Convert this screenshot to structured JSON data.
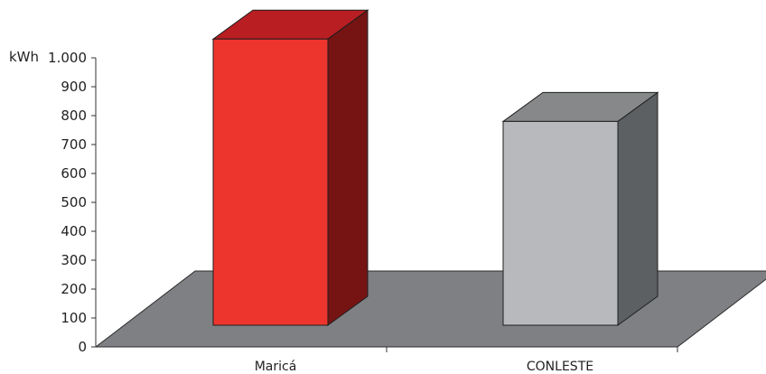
{
  "chart_data": {
    "type": "bar",
    "style": "3d",
    "unit": "kWh",
    "categories": [
      "Maricá",
      "CONLESTE"
    ],
    "values": [
      990,
      705
    ],
    "ylim": [
      0,
      1000
    ],
    "yticks": [
      0,
      100,
      200,
      300,
      400,
      500,
      600,
      700,
      800,
      900,
      1000
    ],
    "ytick_labels": [
      "0",
      "100",
      "200",
      "300",
      "400",
      "500",
      "600",
      "700",
      "800",
      "900",
      "1.000"
    ],
    "grid": false,
    "legend": "none",
    "colors": {
      "bar_front": [
        "#ee352d",
        "#b8b9bc"
      ],
      "bar_top": [
        "#b81e22",
        "#87888a"
      ],
      "bar_side": [
        "#761414",
        "#5d6062"
      ],
      "floor": "#7f8083"
    }
  }
}
